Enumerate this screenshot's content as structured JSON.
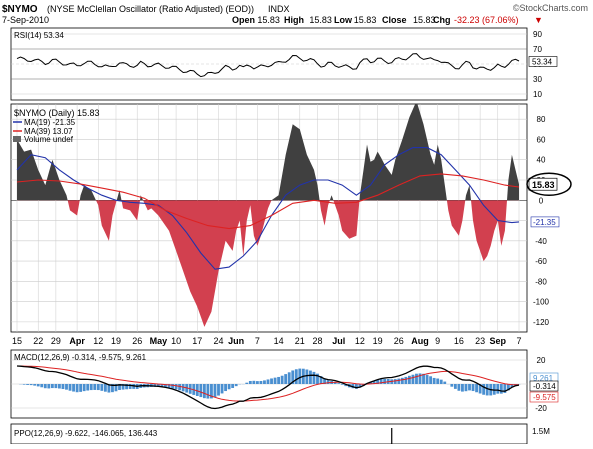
{
  "header": {
    "symbol": "$NYMO",
    "title_rest": "(NYSE McClellan Oscillator (Ratio Adjusted) (EOD))",
    "exchange": "INDX",
    "date": "7-Sep-2010",
    "open_label": "Open",
    "open_value": "15.83",
    "high_label": "High",
    "high_value": "15.83",
    "low_label": "Low",
    "low_value": "15.83",
    "close_label": "Close",
    "close_value": "15.83",
    "chg_label": "Chg",
    "chg_value": "-32.23 (67.06%)",
    "chg_arrow": "▼",
    "watermark": "©StockCharts.com"
  },
  "colors": {
    "positive_fill": "#404040",
    "negative_fill": "#d2404f",
    "ma19": "#2233aa",
    "ma39": "#dd2222",
    "macd_line": "#000000",
    "macd_signal": "#dd2222",
    "histogram": "#4a8fd0",
    "rsi_line": "#000000",
    "grid": "#cccccc"
  },
  "rsi_panel": {
    "legend": "RSI(14) 53.34",
    "ticks": [
      "90",
      "70",
      "50",
      "30",
      "10"
    ],
    "current_label": "53.34"
  },
  "main_panel": {
    "legend": "$NYMO (Daily) 15.83",
    "ma19_label": "MA(19) -21.35",
    "ma39_label": "MA(39) 13.07",
    "volume_label": "Volume undef",
    "ticks": [
      "80",
      "60",
      "40",
      "20",
      "0",
      "-20",
      "-40",
      "-60",
      "-80",
      "-100",
      "-120"
    ],
    "current_label": "15.83",
    "ma19_current_label": "-21.35"
  },
  "x_axis": {
    "labels": [
      "15",
      "22",
      "29",
      "Apr",
      "12",
      "19",
      "26",
      "May",
      "10",
      "17",
      "24",
      "Jun",
      "7",
      "14",
      "21",
      "28",
      "Jul",
      "12",
      "19",
      "26",
      "Aug",
      "9",
      "16",
      "23",
      "Sep",
      "7"
    ]
  },
  "macd_panel": {
    "legend": "MACD(12,26,9) -0.314, -9.575, 9.261",
    "ticks": [
      "20",
      "0",
      "-20"
    ],
    "labels": [
      "9.261",
      "-0.314",
      "-9.575"
    ]
  },
  "ppo_panel": {
    "legend": "PPO(12,26,9) -9.622, -146.065, 136.443",
    "tick": "1.5M"
  },
  "chart_data": {
    "type": "area",
    "title": "$NYMO (NYSE McClellan Oscillator (Ratio Adjusted) (EOD))",
    "x_start": "2010-03-12",
    "x_end": "2010-09-07",
    "x_ticks": [
      "15",
      "22",
      "29",
      "Apr",
      "12",
      "19",
      "26",
      "May",
      "10",
      "17",
      "24",
      "Jun",
      "7",
      "14",
      "21",
      "28",
      "Jul",
      "12",
      "19",
      "26",
      "Aug",
      "9",
      "16",
      "23",
      "Sep",
      "7"
    ],
    "ylim": [
      -130,
      95
    ],
    "series": [
      {
        "name": "$NYMO",
        "points": [
          [
            0,
            60
          ],
          [
            2,
            48
          ],
          [
            4,
            50
          ],
          [
            6,
            30
          ],
          [
            8,
            15
          ],
          [
            10,
            40
          ],
          [
            12,
            20
          ],
          [
            14,
            5
          ],
          [
            15,
            -10
          ],
          [
            17,
            -15
          ],
          [
            18,
            5
          ],
          [
            19,
            15
          ],
          [
            21,
            10
          ],
          [
            23,
            -5
          ],
          [
            24,
            -25
          ],
          [
            26,
            -40
          ],
          [
            27,
            -15
          ],
          [
            29,
            10
          ],
          [
            30,
            -8
          ],
          [
            32,
            -10
          ],
          [
            34,
            -20
          ],
          [
            35,
            5
          ],
          [
            37,
            -10
          ],
          [
            38,
            -8
          ],
          [
            40,
            -15
          ],
          [
            43,
            -30
          ],
          [
            45,
            -50
          ],
          [
            47,
            -70
          ],
          [
            49,
            -90
          ],
          [
            51,
            -105
          ],
          [
            53,
            -125
          ],
          [
            55,
            -110
          ],
          [
            57,
            -70
          ],
          [
            59,
            -40
          ],
          [
            61,
            -50
          ],
          [
            62,
            -30
          ],
          [
            63,
            -20
          ],
          [
            64,
            -55
          ],
          [
            65,
            -20
          ],
          [
            66,
            -5
          ],
          [
            67,
            -35
          ],
          [
            68,
            -45
          ],
          [
            69,
            -35
          ],
          [
            71,
            -8
          ],
          [
            72,
            0
          ],
          [
            74,
            5
          ],
          [
            76,
            45
          ],
          [
            78,
            75
          ],
          [
            80,
            70
          ],
          [
            82,
            45
          ],
          [
            84,
            30
          ],
          [
            85,
            15
          ],
          [
            86,
            -10
          ],
          [
            87,
            -25
          ],
          [
            88,
            -5
          ],
          [
            89,
            5
          ],
          [
            91,
            -15
          ],
          [
            92,
            -30
          ],
          [
            94,
            -38
          ],
          [
            96,
            -35
          ],
          [
            97,
            5
          ],
          [
            98,
            30
          ],
          [
            99,
            55
          ],
          [
            100,
            38
          ],
          [
            101,
            40
          ],
          [
            102,
            48
          ],
          [
            103,
            42
          ],
          [
            104,
            35
          ],
          [
            106,
            25
          ],
          [
            107,
            40
          ],
          [
            109,
            60
          ],
          [
            111,
            82
          ],
          [
            113,
            98
          ],
          [
            115,
            75
          ],
          [
            117,
            45
          ],
          [
            118,
            35
          ],
          [
            119,
            55
          ],
          [
            120,
            40
          ],
          [
            121,
            15
          ],
          [
            122,
            -10
          ],
          [
            123,
            -25
          ],
          [
            124,
            -30
          ],
          [
            125,
            -35
          ],
          [
            126,
            -20
          ],
          [
            127,
            5
          ],
          [
            128,
            15
          ],
          [
            129,
            -20
          ],
          [
            130,
            -40
          ],
          [
            131,
            -50
          ],
          [
            132,
            -60
          ],
          [
            133,
            -55
          ],
          [
            134,
            -45
          ],
          [
            135,
            -30
          ],
          [
            136,
            -20
          ],
          [
            137,
            -45
          ],
          [
            138,
            -30
          ],
          [
            139,
            20
          ],
          [
            140,
            45
          ],
          [
            141,
            30
          ],
          [
            142,
            15.83
          ]
        ]
      },
      {
        "name": "MA(19)",
        "points": [
          [
            0,
            30
          ],
          [
            4,
            45
          ],
          [
            8,
            42
          ],
          [
            12,
            30
          ],
          [
            16,
            20
          ],
          [
            20,
            12
          ],
          [
            24,
            5
          ],
          [
            28,
            0
          ],
          [
            32,
            -2
          ],
          [
            36,
            -3
          ],
          [
            40,
            -5
          ],
          [
            44,
            -15
          ],
          [
            48,
            -32
          ],
          [
            52,
            -52
          ],
          [
            56,
            -68
          ],
          [
            60,
            -66
          ],
          [
            64,
            -55
          ],
          [
            68,
            -40
          ],
          [
            72,
            -15
          ],
          [
            76,
            5
          ],
          [
            80,
            15
          ],
          [
            84,
            20
          ],
          [
            88,
            20
          ],
          [
            92,
            15
          ],
          [
            96,
            5
          ],
          [
            100,
            15
          ],
          [
            104,
            35
          ],
          [
            108,
            45
          ],
          [
            112,
            52
          ],
          [
            116,
            52
          ],
          [
            120,
            45
          ],
          [
            124,
            30
          ],
          [
            128,
            15
          ],
          [
            132,
            -5
          ],
          [
            136,
            -20
          ],
          [
            140,
            -22
          ],
          [
            142,
            -21.35
          ]
        ]
      },
      {
        "name": "MA(39)",
        "points": [
          [
            0,
            18
          ],
          [
            6,
            20
          ],
          [
            12,
            19
          ],
          [
            18,
            16
          ],
          [
            24,
            12
          ],
          [
            30,
            8
          ],
          [
            36,
            2
          ],
          [
            42,
            -10
          ],
          [
            48,
            -18
          ],
          [
            54,
            -25
          ],
          [
            60,
            -28
          ],
          [
            66,
            -25
          ],
          [
            72,
            -15
          ],
          [
            78,
            -3
          ],
          [
            84,
            0
          ],
          [
            90,
            -3
          ],
          [
            96,
            -2
          ],
          [
            102,
            5
          ],
          [
            108,
            15
          ],
          [
            114,
            24
          ],
          [
            120,
            26
          ],
          [
            126,
            24
          ],
          [
            132,
            20
          ],
          [
            138,
            15
          ],
          [
            142,
            13.07
          ]
        ]
      }
    ]
  }
}
